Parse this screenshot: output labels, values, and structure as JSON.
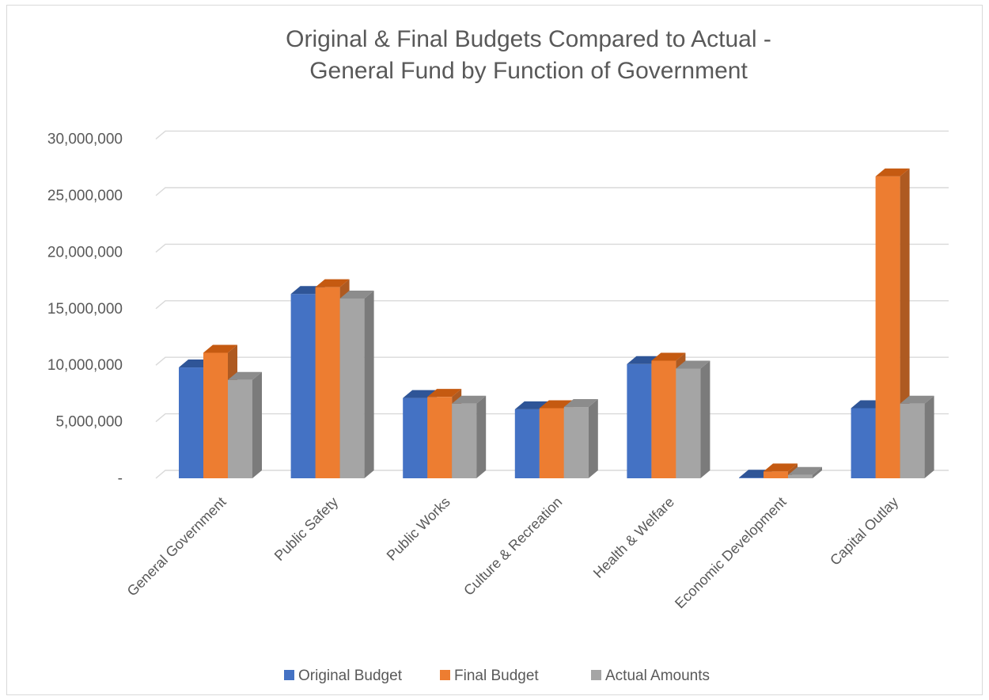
{
  "chart_data": {
    "type": "bar",
    "title": [
      "Original & Final Budgets Compared to Actual -",
      "General Fund by Function of Government"
    ],
    "xlabel": "",
    "ylabel": "",
    "ylim": [
      0,
      30000000
    ],
    "y_ticks": [
      0,
      5000000,
      10000000,
      15000000,
      20000000,
      25000000,
      30000000
    ],
    "y_tick_labels": [
      "-",
      "5,000,000",
      "10,000,000",
      "15,000,000",
      "20,000,000",
      "25,000,000",
      "30,000,000"
    ],
    "grid": true,
    "legend_position": "bottom",
    "categories": [
      "General Government",
      "Public Safety",
      "Public Works",
      "Culture & Recreation",
      "Health & Welfare",
      "Economic Development",
      "Capital Outlay"
    ],
    "series": [
      {
        "name": "Original Budget",
        "color": "#4472c4",
        "side_color": "#2f528f",
        "top_color": "#2f5597",
        "values": [
          9800000,
          16300000,
          7100000,
          6100000,
          10100000,
          50000,
          6200000
        ]
      },
      {
        "name": "Final Budget",
        "color": "#ed7d31",
        "side_color": "#ae5a21",
        "top_color": "#c55a11",
        "values": [
          11100000,
          16900000,
          7200000,
          6200000,
          10400000,
          600000,
          26700000
        ]
      },
      {
        "name": "Actual Amounts",
        "color": "#a5a5a5",
        "side_color": "#7b7b7b",
        "top_color": "#8c8c8c",
        "values": [
          8700000,
          15900000,
          6600000,
          6300000,
          9700000,
          300000,
          6600000
        ]
      }
    ]
  }
}
